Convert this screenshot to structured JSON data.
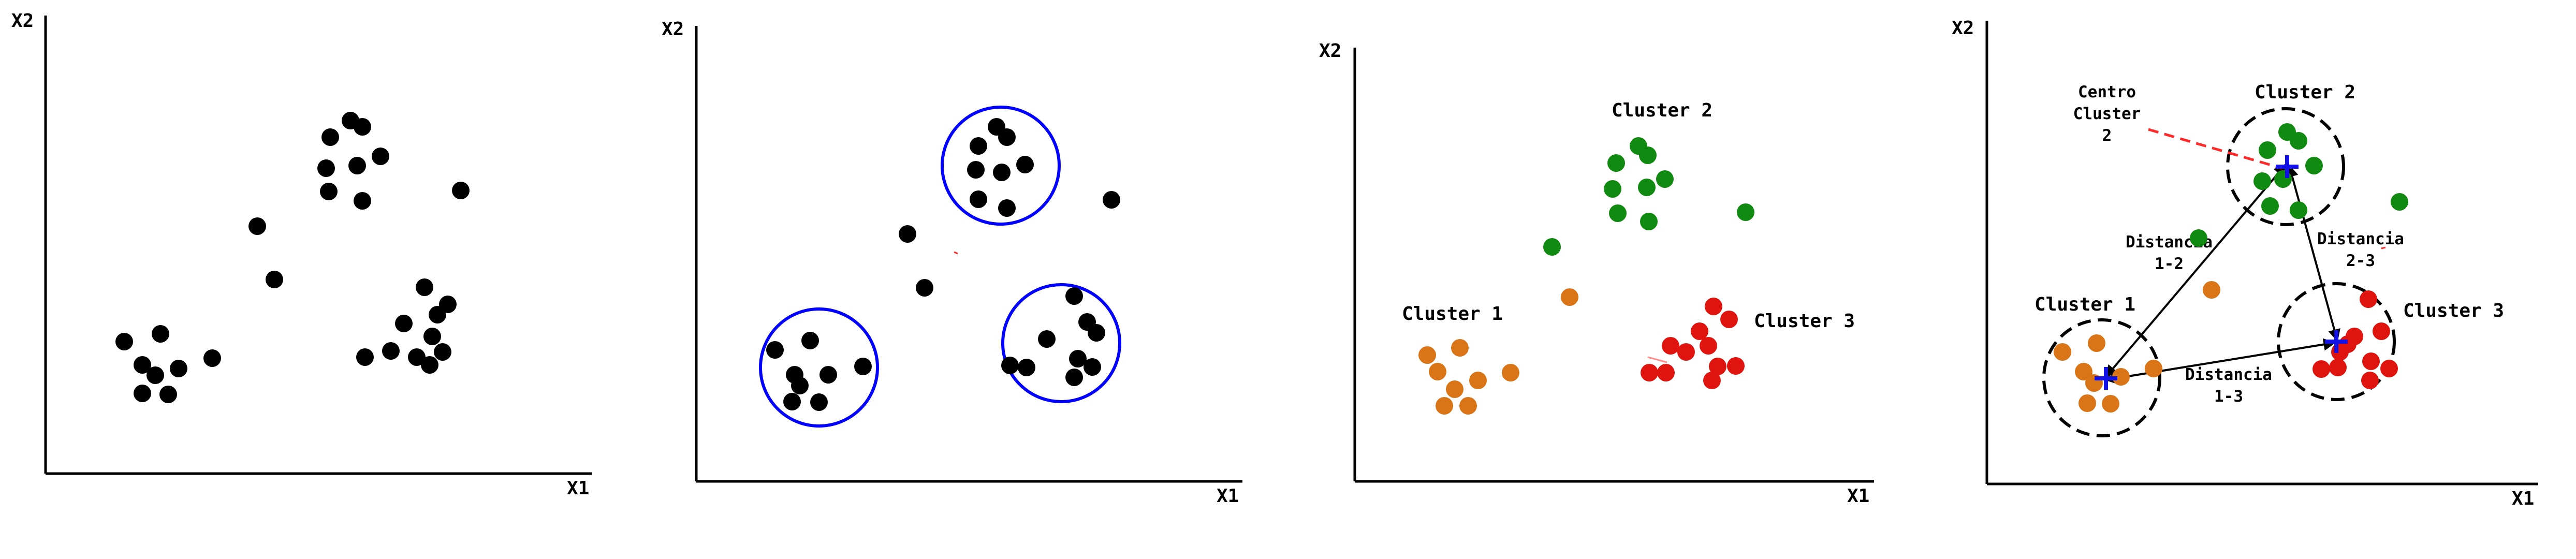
{
  "colors": {
    "axis": "#000000",
    "point_default": "#000000",
    "highlight_circle": "#0000ff",
    "cluster_1": "#d97417",
    "cluster_2": "#118a11",
    "cluster_3": "#e0140e",
    "centroid_marker": "#1212e6",
    "dashed_guide": "#ff2a2a"
  },
  "panels": [
    {
      "id": "panel-raw-points",
      "x_axis_label": "X1",
      "y_axis_label": "X2"
    },
    {
      "id": "panel-circled-groups",
      "x_axis_label": "X1",
      "y_axis_label": "X2"
    },
    {
      "id": "panel-colored-clusters",
      "x_axis_label": "X1",
      "y_axis_label": "X2",
      "cluster_labels": {
        "cluster_1": "Cluster 1",
        "cluster_2": "Cluster 2",
        "cluster_3": "Cluster 3"
      }
    },
    {
      "id": "panel-centroids-distances",
      "x_axis_label": "X1",
      "y_axis_label": "X2",
      "cluster_labels": {
        "cluster_1": "Cluster 1",
        "cluster_2": "Cluster 2",
        "cluster_3": "Cluster 3"
      },
      "centroid_annotation": [
        "Centro",
        "Cluster",
        "2"
      ],
      "distance_labels": {
        "d12": [
          "Distancia",
          "1-2"
        ],
        "d23": [
          "Distancia",
          "2-3"
        ],
        "d13": [
          "Distancia",
          "1-3"
        ]
      }
    }
  ]
}
